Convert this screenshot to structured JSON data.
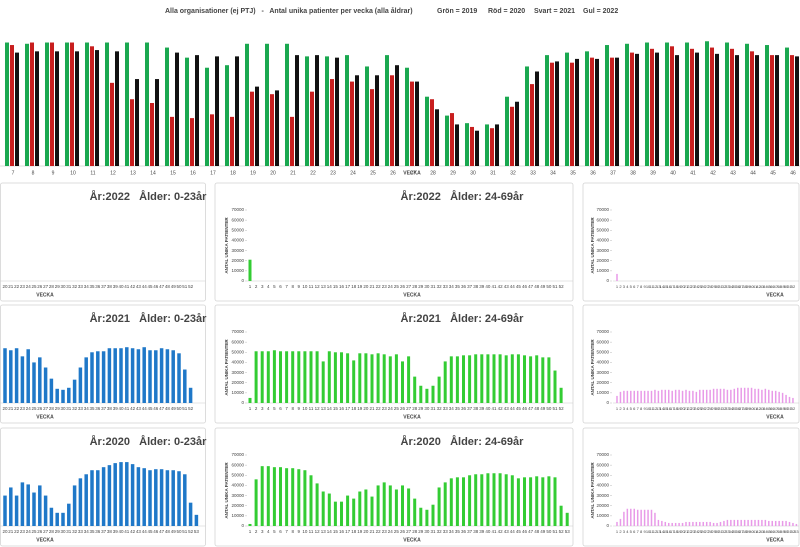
{
  "chart_data": [
    {
      "type": "grouped_bar",
      "title": "Alla organisationer (ej PTJ)   -   Antal unika patienter per vecka (alla åldrar)",
      "categories": [
        7,
        8,
        9,
        10,
        11,
        12,
        13,
        14,
        15,
        16,
        17,
        18,
        19,
        20,
        21,
        22,
        23,
        24,
        25,
        26,
        27,
        28,
        29,
        30,
        31,
        32,
        33,
        34,
        35,
        36,
        37,
        38,
        39,
        40,
        41,
        42,
        43,
        44,
        45,
        46
      ],
      "x_label": "VECKA",
      "ylim": [
        0,
        100
      ],
      "series": [
        {
          "name": "Grön = 2019",
          "color": "#1aa850",
          "values": [
            98,
            97,
            98,
            98,
            98,
            98,
            98,
            98,
            94,
            86,
            78,
            80,
            97,
            97,
            97,
            87,
            87,
            88,
            79,
            88,
            78,
            55,
            40,
            34,
            33,
            55,
            79,
            88,
            90,
            91,
            96,
            97,
            98,
            98,
            98,
            99,
            98,
            97,
            96,
            94
          ]
        },
        {
          "name": "Röd = 2020",
          "color": "#c81e1e",
          "values": [
            96,
            98,
            98,
            98,
            95,
            66,
            53,
            50,
            39,
            38,
            41,
            39,
            59,
            57,
            39,
            59,
            69,
            67,
            61,
            72,
            67,
            53,
            42,
            31,
            30,
            47,
            65,
            82,
            82,
            86,
            86,
            90,
            93,
            95,
            93,
            94,
            93,
            91,
            88,
            88
          ]
        },
        {
          "name": "Svart = 2021",
          "color": "#111111",
          "values": [
            90,
            91,
            91,
            91,
            92,
            91,
            69,
            69,
            90,
            88,
            87,
            87,
            63,
            60,
            88,
            88,
            86,
            72,
            72,
            80,
            67,
            45,
            33,
            28,
            33,
            51,
            75,
            83,
            85,
            85,
            86,
            89,
            90,
            88,
            90,
            89,
            88,
            88,
            88,
            87
          ]
        },
        {
          "name": "Gul = 2022",
          "color": "#f0b000",
          "values": [
            null,
            null,
            null,
            null,
            null,
            null,
            null,
            null,
            null,
            null,
            null,
            null,
            null,
            null,
            null,
            null,
            null,
            null,
            null,
            null,
            null,
            null,
            null,
            null,
            null,
            null,
            null,
            null,
            null,
            null,
            null,
            null,
            null,
            null,
            null,
            null,
            null,
            null,
            null,
            null
          ]
        }
      ]
    },
    {
      "type": "bar",
      "title": "År:2022   Ålder: 0-23år",
      "x_label": "VECKA",
      "color": "#1f78c8",
      "ylim": [
        0,
        70000
      ],
      "categories": [
        20,
        21,
        22,
        23,
        24,
        25,
        26,
        27,
        28,
        29,
        30,
        31,
        32,
        33,
        34,
        35,
        36,
        37,
        38,
        39,
        40,
        41,
        42,
        43,
        44,
        45,
        46,
        47,
        48,
        49,
        50,
        51,
        52
      ],
      "values": [
        null,
        null,
        null,
        null,
        null,
        null,
        null,
        null,
        null,
        null,
        null,
        null,
        null,
        null,
        null,
        null,
        null,
        null,
        null,
        null,
        null,
        null,
        null,
        null,
        null,
        null,
        null,
        null,
        null,
        null,
        null,
        null,
        null
      ]
    },
    {
      "type": "bar",
      "title": "År:2022   Ålder: 24-69år",
      "x_label": "VECKA",
      "y_label": "ANTAL UNIKA PATIENTER",
      "color": "#33cc33",
      "ylim": [
        0,
        70000
      ],
      "yticks": [
        0,
        10000,
        20000,
        30000,
        40000,
        50000,
        60000,
        70000
      ],
      "categories": [
        1,
        2,
        3,
        4,
        5,
        6,
        7,
        8,
        9,
        10,
        11,
        12,
        13,
        14,
        15,
        16,
        17,
        18,
        19,
        20,
        21,
        22,
        23,
        24,
        25,
        26,
        27,
        28,
        29,
        30,
        31,
        32,
        33,
        34,
        35,
        36,
        37,
        38,
        39,
        40,
        41,
        42,
        43,
        44,
        45,
        46,
        47,
        48,
        49,
        50,
        51,
        52
      ],
      "values": [
        21000,
        null,
        null,
        null,
        null,
        null,
        null,
        null,
        null,
        null,
        null,
        null,
        null,
        null,
        null,
        null,
        null,
        null,
        null,
        null,
        null,
        null,
        null,
        null,
        null,
        null,
        null,
        null,
        null,
        null,
        null,
        null,
        null,
        null,
        null,
        null,
        null,
        null,
        null,
        null,
        null,
        null,
        null,
        null,
        null,
        null,
        null,
        null,
        null,
        null,
        null,
        null
      ]
    },
    {
      "type": "bar",
      "x_label": "VECKA",
      "y_label": "ANTAL UNIKA PATIENTER",
      "color": "#e89ae8",
      "ylim": [
        0,
        70000
      ],
      "yticks": [
        0,
        10000,
        20000,
        30000,
        40000,
        50000,
        60000,
        70000
      ],
      "categories": [
        1,
        2,
        3,
        4,
        5,
        6,
        7,
        8,
        9,
        10,
        11,
        12,
        13,
        14,
        15,
        16,
        17,
        18,
        19,
        20,
        21,
        22,
        23,
        24,
        25,
        26,
        27,
        28,
        29,
        30,
        31,
        32,
        33,
        34,
        35,
        36,
        37,
        38,
        39,
        40,
        41,
        42,
        43,
        44,
        45,
        46,
        47,
        48,
        49,
        50,
        51,
        52
      ],
      "values": [
        7000,
        null,
        null,
        null,
        null,
        null,
        null,
        null,
        null,
        null,
        null,
        null,
        null,
        null,
        null,
        null,
        null,
        null,
        null,
        null,
        null,
        null,
        null,
        null,
        null,
        null,
        null,
        null,
        null,
        null,
        null,
        null,
        null,
        null,
        null,
        null,
        null,
        null,
        null,
        null,
        null,
        null,
        null,
        null,
        null,
        null,
        null,
        null,
        null,
        null,
        null,
        null
      ]
    },
    {
      "type": "bar",
      "title": "År:2021   Ålder: 0-23år",
      "x_label": "VECKA",
      "color": "#1f78c8",
      "ylim": [
        0,
        70000
      ],
      "categories": [
        20,
        21,
        22,
        23,
        24,
        25,
        26,
        27,
        28,
        29,
        30,
        31,
        32,
        33,
        34,
        35,
        36,
        37,
        38,
        39,
        40,
        41,
        42,
        43,
        44,
        45,
        46,
        47,
        48,
        49,
        50,
        51,
        52
      ],
      "values": [
        54000,
        52000,
        54000,
        46000,
        53000,
        40000,
        45000,
        35000,
        24000,
        14000,
        13000,
        15000,
        23000,
        35000,
        45000,
        50000,
        51000,
        51000,
        54000,
        54000,
        54000,
        55000,
        54000,
        53000,
        55000,
        52000,
        52000,
        54000,
        53000,
        52000,
        49000,
        33000,
        15000
      ]
    },
    {
      "type": "bar",
      "title": "År:2021   Ålder: 24-69år",
      "x_label": "VECKA",
      "y_label": "ANTAL UNIKA PATIENTER",
      "color": "#33cc33",
      "ylim": [
        0,
        70000
      ],
      "yticks": [
        0,
        10000,
        20000,
        30000,
        40000,
        50000,
        60000,
        70000
      ],
      "categories": [
        1,
        2,
        3,
        4,
        5,
        6,
        7,
        8,
        9,
        10,
        11,
        12,
        13,
        14,
        15,
        16,
        17,
        18,
        19,
        20,
        21,
        22,
        23,
        24,
        25,
        26,
        27,
        28,
        29,
        30,
        31,
        32,
        33,
        34,
        35,
        36,
        37,
        38,
        39,
        40,
        41,
        42,
        43,
        44,
        45,
        46,
        47,
        48,
        49,
        50,
        51,
        52
      ],
      "values": [
        5000,
        51000,
        51000,
        51000,
        52000,
        51000,
        51000,
        51000,
        51000,
        51000,
        51000,
        51000,
        41000,
        51000,
        50000,
        50000,
        49000,
        42000,
        49000,
        49000,
        48000,
        49000,
        48000,
        46000,
        48000,
        41000,
        46000,
        26000,
        17000,
        14000,
        17000,
        26000,
        41000,
        46000,
        46000,
        47000,
        47000,
        48000,
        48000,
        48000,
        48000,
        48000,
        47000,
        48000,
        48000,
        47000,
        46000,
        47000,
        45000,
        45000,
        32000,
        15000
      ]
    },
    {
      "type": "bar",
      "x_label": "VECKA",
      "y_label": "ANTAL UNIKA PATIENTER",
      "color": "#e89ae8",
      "ylim": [
        0,
        70000
      ],
      "yticks": [
        0,
        10000,
        20000,
        30000,
        40000,
        50000,
        60000,
        70000
      ],
      "categories": [
        1,
        2,
        3,
        4,
        5,
        6,
        7,
        8,
        9,
        10,
        11,
        12,
        13,
        14,
        15,
        16,
        17,
        18,
        19,
        20,
        21,
        22,
        23,
        24,
        25,
        26,
        27,
        28,
        29,
        30,
        31,
        32,
        33,
        34,
        35,
        36,
        37,
        38,
        39,
        40,
        41,
        42,
        43,
        44,
        45,
        46,
        47,
        48,
        49,
        50,
        51,
        52
      ],
      "values": [
        7000,
        11000,
        12000,
        12000,
        12000,
        12000,
        12000,
        12000,
        12000,
        12000,
        12000,
        13000,
        12000,
        13000,
        13000,
        13000,
        12000,
        13000,
        13000,
        12000,
        13000,
        12000,
        12000,
        11000,
        13000,
        13000,
        13000,
        13000,
        14000,
        14000,
        14000,
        14000,
        13000,
        13000,
        14000,
        15000,
        15000,
        15000,
        15000,
        15000,
        14000,
        14000,
        13000,
        14000,
        13000,
        12000,
        12000,
        11000,
        10000,
        8000,
        6000,
        5000
      ]
    },
    {
      "type": "bar",
      "title": "År:2020   Ålder: 0-23år",
      "x_label": "VECKA",
      "color": "#1f78c8",
      "ylim": [
        0,
        70000
      ],
      "categories": [
        20,
        21,
        22,
        23,
        24,
        25,
        26,
        27,
        28,
        29,
        30,
        31,
        32,
        33,
        34,
        35,
        36,
        37,
        38,
        39,
        40,
        41,
        42,
        43,
        44,
        45,
        46,
        47,
        48,
        49,
        50,
        51,
        52,
        53
      ],
      "values": [
        30000,
        38000,
        30000,
        43000,
        41000,
        33000,
        40000,
        30000,
        18000,
        13000,
        13000,
        22000,
        40000,
        47000,
        51000,
        55000,
        55000,
        58000,
        60000,
        62000,
        63000,
        63000,
        61000,
        58000,
        57000,
        55000,
        56000,
        56000,
        55000,
        55000,
        54000,
        51000,
        23000,
        11000
      ]
    },
    {
      "type": "bar",
      "title": "År:2020   Ålder: 24-69år",
      "x_label": "VECKA",
      "y_label": "ANTAL UNIKA PATIENTER",
      "color": "#33cc33",
      "ylim": [
        0,
        70000
      ],
      "yticks": [
        0,
        10000,
        20000,
        30000,
        40000,
        50000,
        60000,
        70000
      ],
      "categories": [
        1,
        2,
        3,
        4,
        5,
        6,
        7,
        8,
        9,
        10,
        11,
        12,
        13,
        14,
        15,
        16,
        17,
        18,
        19,
        20,
        21,
        22,
        23,
        24,
        25,
        26,
        27,
        28,
        29,
        30,
        31,
        32,
        33,
        34,
        35,
        36,
        37,
        38,
        39,
        40,
        41,
        42,
        43,
        44,
        45,
        46,
        47,
        48,
        49,
        50,
        51,
        52,
        53
      ],
      "values": [
        2000,
        46000,
        59000,
        59000,
        58000,
        58000,
        57000,
        57000,
        56000,
        55000,
        50000,
        42000,
        34000,
        32000,
        24000,
        24000,
        30000,
        27000,
        34000,
        36000,
        29000,
        40000,
        43000,
        40000,
        36000,
        40000,
        37000,
        27000,
        18000,
        16000,
        21000,
        38000,
        43000,
        47000,
        48000,
        48000,
        50000,
        51000,
        51000,
        52000,
        52000,
        52000,
        51000,
        50000,
        47000,
        48000,
        48000,
        49000,
        48000,
        49000,
        48000,
        20000,
        13000
      ]
    },
    {
      "type": "bar",
      "x_label": "VECKA",
      "y_label": "ANTAL UNIKA PATIENTER",
      "color": "#e89ae8",
      "ylim": [
        0,
        70000
      ],
      "yticks": [
        0,
        10000,
        20000,
        30000,
        40000,
        50000,
        60000,
        70000
      ],
      "categories": [
        1,
        2,
        3,
        4,
        5,
        6,
        7,
        8,
        9,
        10,
        11,
        12,
        13,
        14,
        15,
        16,
        17,
        18,
        19,
        20,
        21,
        22,
        23,
        24,
        25,
        26,
        27,
        28,
        29,
        30,
        31,
        32,
        33,
        34,
        35,
        36,
        37,
        38,
        39,
        40,
        41,
        42,
        43,
        44,
        45,
        46,
        47,
        48,
        49,
        50,
        51,
        52,
        53
      ],
      "values": [
        4000,
        7000,
        14000,
        17000,
        17000,
        17000,
        16000,
        16000,
        16000,
        16000,
        16000,
        13000,
        6000,
        5000,
        4000,
        3000,
        3000,
        3000,
        3000,
        3000,
        4000,
        4000,
        4000,
        4000,
        4000,
        4000,
        4000,
        4000,
        3000,
        3000,
        4000,
        5000,
        6000,
        6000,
        6000,
        6000,
        6000,
        6000,
        6000,
        6000,
        6000,
        6000,
        6000,
        6000,
        5000,
        5000,
        5000,
        5000,
        5000,
        5000,
        4000,
        3000,
        2000
      ]
    }
  ]
}
